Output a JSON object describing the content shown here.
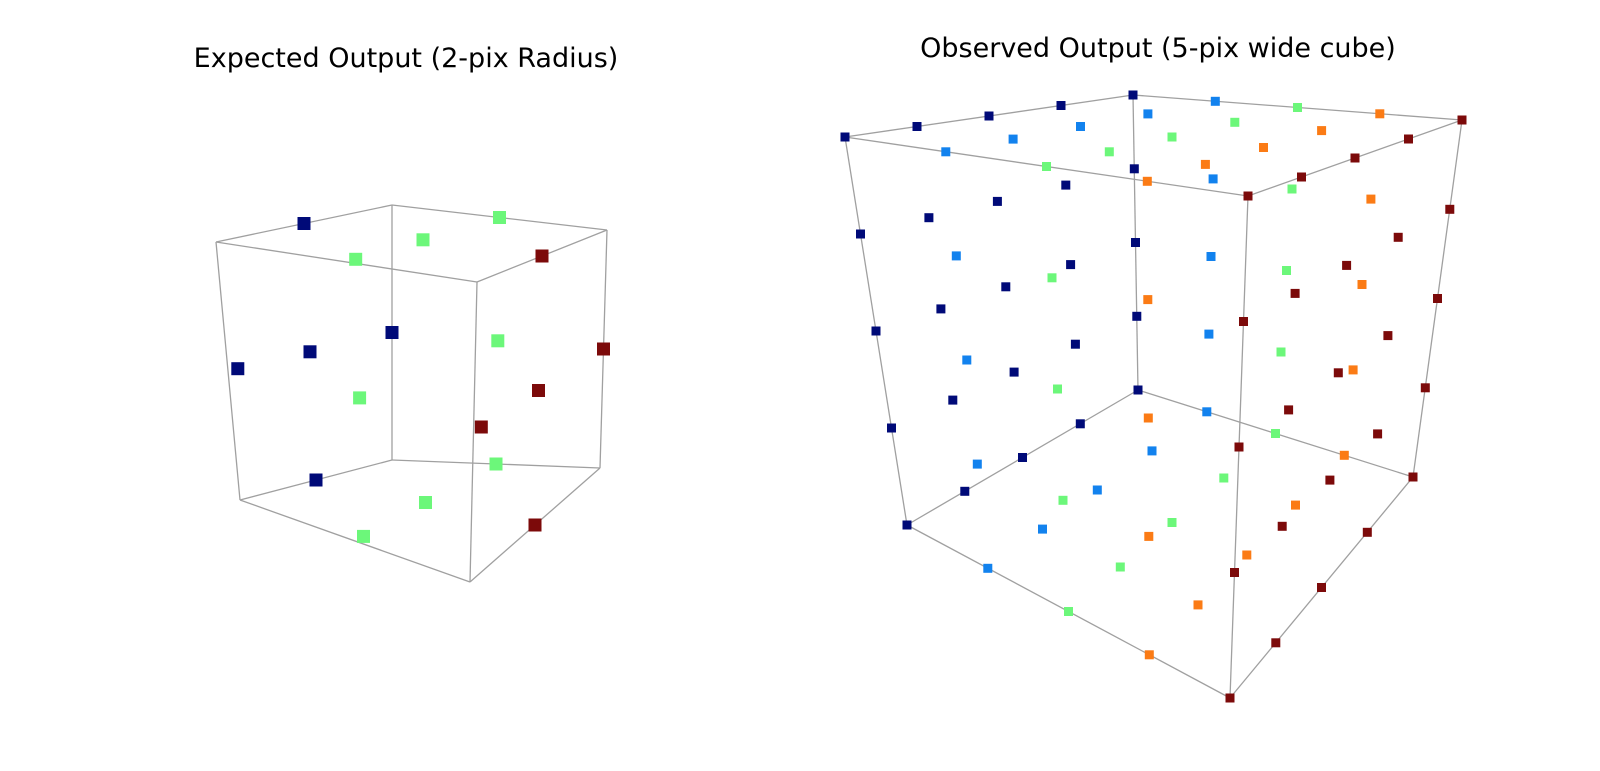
{
  "colors": {
    "navy": "#000a78",
    "azure": "#1282ee",
    "lime": "#6cf77a",
    "orange": "#fb7b15",
    "maroon": "#7c0a0a",
    "edge": "#a0a0a0"
  },
  "panels": [
    {
      "id": "expected",
      "title": "Expected Output (2-pix Radius)",
      "marker_colors": [
        "navy",
        "lime",
        "maroon"
      ]
    },
    {
      "id": "observed",
      "title": "Observed Output (5-pix wide cube)",
      "marker_colors": [
        "navy",
        "azure",
        "lime",
        "orange",
        "maroon"
      ]
    }
  ]
}
